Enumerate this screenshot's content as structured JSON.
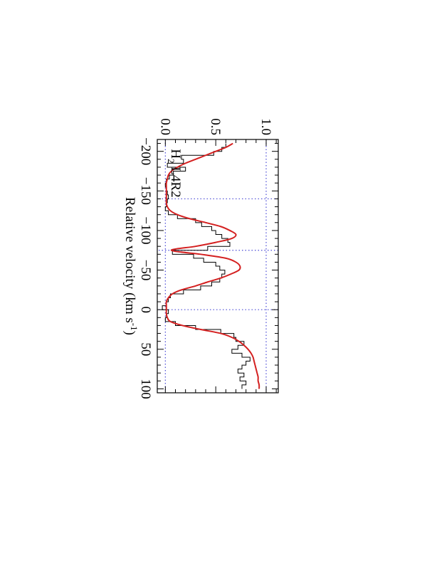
{
  "chart_data": {
    "type": "line",
    "orientation": "rotated-90-clockwise",
    "annotation": "H",
    "annotation_sub": "2",
    "annotation_rest": " L4R2",
    "xlabel": "Relative velocity (km s",
    "xlabel_sup": "-1",
    "xlabel_end": ")",
    "ylabel": "",
    "xlim": [
      -215,
      105
    ],
    "ylim": [
      -0.08,
      1.12
    ],
    "x_ticks": [
      {
        "value": -200,
        "label": "−200"
      },
      {
        "value": -150,
        "label": "−150"
      },
      {
        "value": -100,
        "label": "−100"
      },
      {
        "value": -50,
        "label": "−50"
      },
      {
        "value": 0,
        "label": "0"
      },
      {
        "value": 50,
        "label": "50"
      },
      {
        "value": 100,
        "label": "100"
      }
    ],
    "y_ticks": [
      {
        "value": 0.0,
        "label": "0.0"
      },
      {
        "value": 0.5,
        "label": "0.5"
      },
      {
        "value": 1.0,
        "label": "1.0"
      }
    ],
    "reference_lines": {
      "horizontal": [
        0.0,
        1.0
      ],
      "vertical_velocities": [
        -140,
        -75,
        0
      ],
      "color": "#4b4bd6"
    },
    "series": [
      {
        "kind": "histogram",
        "color": "#000000",
        "x": [
          -210,
          -205,
          -200,
          -195,
          -190,
          -185,
          -180,
          -175,
          -170,
          -165,
          -160,
          -155,
          -150,
          -145,
          -140,
          -135,
          -130,
          -125,
          -120,
          -115,
          -110,
          -105,
          -100,
          -95,
          -90,
          -85,
          -80,
          -75,
          -70,
          -65,
          -60,
          -55,
          -50,
          -45,
          -40,
          -35,
          -30,
          -25,
          -20,
          -15,
          -10,
          -5,
          0,
          5,
          10,
          15,
          20,
          25,
          30,
          35,
          40,
          45,
          50,
          55,
          60,
          65,
          70,
          75,
          80,
          85,
          90,
          95
        ],
        "y": [
          0.6,
          0.56,
          0.48,
          0.16,
          0.18,
          0.02,
          0.2,
          0.08,
          0.04,
          0.01,
          0.0,
          0.01,
          0.02,
          0.03,
          0.02,
          0.01,
          0.0,
          0.03,
          0.12,
          0.3,
          0.36,
          0.46,
          0.5,
          0.56,
          0.62,
          0.64,
          0.42,
          0.07,
          0.28,
          0.38,
          0.5,
          0.54,
          0.59,
          0.56,
          0.54,
          0.46,
          0.35,
          0.18,
          0.05,
          0.03,
          0.01,
          -0.03,
          0.03,
          0.01,
          0.0,
          0.1,
          0.3,
          0.55,
          0.68,
          0.7,
          0.78,
          0.72,
          0.66,
          0.76,
          0.84,
          0.8,
          0.76,
          0.72,
          0.78,
          0.74,
          0.8,
          0.76
        ]
      },
      {
        "kind": "model-fit",
        "color": "#d42020",
        "x": [
          -210,
          -205,
          -200,
          -195,
          -190,
          -185,
          -180,
          -175,
          -170,
          -165,
          -160,
          -155,
          -150,
          -145,
          -140,
          -135,
          -130,
          -125,
          -120,
          -115,
          -110,
          -105,
          -100,
          -95,
          -90,
          -85,
          -80,
          -75,
          -70,
          -65,
          -60,
          -55,
          -50,
          -45,
          -40,
          -35,
          -30,
          -25,
          -20,
          -15,
          -10,
          -5,
          0,
          5,
          10,
          15,
          20,
          25,
          30,
          35,
          40,
          45,
          50,
          55,
          60,
          65,
          70,
          75,
          80,
          85,
          90,
          95,
          100
        ],
        "y": [
          0.67,
          0.6,
          0.5,
          0.4,
          0.3,
          0.2,
          0.12,
          0.06,
          0.03,
          0.02,
          0.01,
          0.01,
          0.01,
          0.01,
          0.01,
          0.01,
          0.02,
          0.05,
          0.12,
          0.24,
          0.4,
          0.55,
          0.64,
          0.7,
          0.66,
          0.5,
          0.3,
          0.06,
          0.35,
          0.6,
          0.7,
          0.74,
          0.73,
          0.65,
          0.55,
          0.42,
          0.3,
          0.16,
          0.07,
          0.03,
          0.01,
          0.01,
          0.01,
          0.01,
          0.02,
          0.05,
          0.17,
          0.35,
          0.55,
          0.66,
          0.73,
          0.78,
          0.82,
          0.85,
          0.87,
          0.88,
          0.89,
          0.9,
          0.91,
          0.92,
          0.92,
          0.93,
          0.93
        ]
      }
    ]
  }
}
